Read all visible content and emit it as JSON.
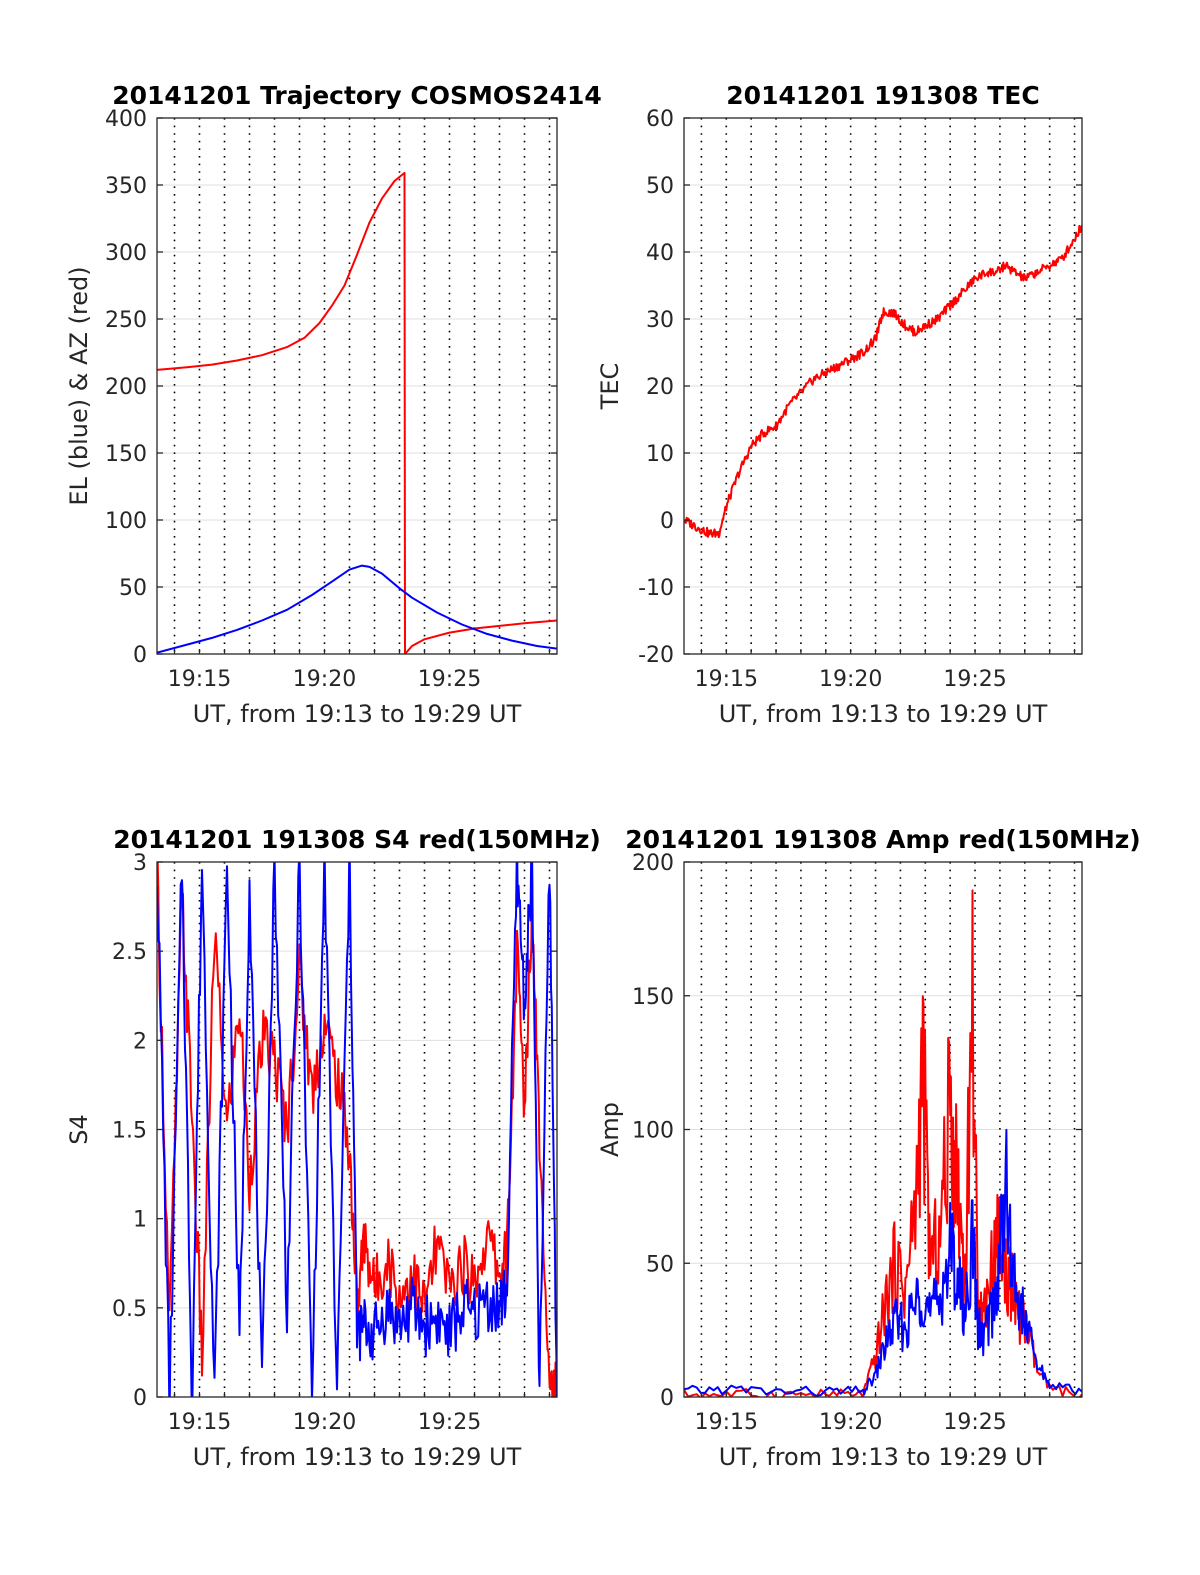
{
  "chart_data": [
    {
      "type": "line",
      "title": "20141201 Trajectory COSMOS2414",
      "xlabel": "UT, from 19:13 to 19:29 UT",
      "ylabel": "EL (blue) & AZ (red)",
      "xlim": [
        13.3,
        29.3
      ],
      "ylim": [
        0,
        400
      ],
      "x_ticks": [
        "19:15",
        "19:20",
        "19:25"
      ],
      "y_ticks": [
        "0",
        "50",
        "100",
        "150",
        "200",
        "250",
        "300",
        "350",
        "400"
      ],
      "grid": true,
      "colors": {
        "blue": "#0000ff",
        "red": "#ff0000"
      },
      "series": [
        {
          "color": "red",
          "x": [
            13.3,
            14.5,
            15.5,
            16.5,
            17.5,
            18.5,
            19.2,
            19.8,
            20.3,
            20.8,
            21.3,
            21.8,
            22.3,
            22.8,
            23.2,
            23.22,
            23.5,
            24,
            25,
            26,
            27,
            28,
            29.3
          ],
          "values": [
            212,
            214,
            216,
            219,
            223,
            229,
            236,
            247,
            260,
            275,
            298,
            322,
            340,
            353,
            359,
            0,
            6,
            11,
            16,
            19,
            21,
            23,
            25
          ]
        },
        {
          "color": "blue",
          "x": [
            13.3,
            14.5,
            15.5,
            16.5,
            17.5,
            18.5,
            19.5,
            20.3,
            21.0,
            21.5,
            21.8,
            22.3,
            23.0,
            23.5,
            24.5,
            25.5,
            26.5,
            27.5,
            28.5,
            29.3
          ],
          "values": [
            1,
            7,
            12,
            18,
            25,
            33,
            44,
            54,
            63,
            66,
            65,
            60,
            49,
            42,
            31,
            22,
            15,
            10,
            6,
            4
          ]
        }
      ]
    },
    {
      "type": "line",
      "title": "20141201 191308 TEC",
      "xlabel": "UT, from 19:13 to 19:29 UT",
      "ylabel": "TEC",
      "xlim": [
        13.3,
        29.3
      ],
      "ylim": [
        -20,
        60
      ],
      "x_ticks": [
        "19:15",
        "19:20",
        "19:25"
      ],
      "y_ticks": [
        "-20",
        "-10",
        "0",
        "10",
        "20",
        "30",
        "40",
        "50",
        "60"
      ],
      "grid": true,
      "colors": {
        "red": "#ff0000"
      },
      "series": [
        {
          "color": "red",
          "x": [
            13.3,
            13.8,
            14.3,
            14.7,
            15.0,
            15.5,
            16.0,
            16.5,
            17.0,
            17.5,
            18.0,
            18.5,
            19.0,
            19.5,
            20.0,
            20.5,
            21.0,
            21.3,
            21.7,
            22.2,
            22.6,
            23.0,
            23.5,
            24.0,
            24.5,
            25.0,
            25.5,
            25.9,
            26.2,
            26.6,
            27.0,
            27.5,
            28.0,
            28.5,
            29.0,
            29.3
          ],
          "values": [
            0,
            -1,
            -2,
            -2,
            2,
            7,
            11,
            13,
            14,
            17,
            19,
            21,
            22,
            23,
            24,
            25,
            27,
            31,
            31,
            29,
            28,
            29,
            30,
            32,
            34,
            36,
            37,
            37,
            38,
            37,
            36,
            37,
            38,
            39,
            42,
            44
          ]
        }
      ]
    },
    {
      "type": "line",
      "title": "20141201 191308 S4 red(150MHz)",
      "xlabel": "UT, from 19:13 to 19:29 UT",
      "ylabel": "S4",
      "xlim": [
        13.3,
        29.3
      ],
      "ylim": [
        0,
        3
      ],
      "x_ticks": [
        "19:15",
        "19:20",
        "19:25"
      ],
      "y_ticks": [
        "0",
        "0.5",
        "1",
        "1.5",
        "2",
        "2.5",
        "3"
      ],
      "grid": true,
      "colors": {
        "blue": "#0000ff",
        "red": "#ff0000"
      },
      "series": [
        {
          "color": "red",
          "x": [
            13.3,
            13.8,
            14.3,
            14.7,
            15.1,
            15.6,
            16.1,
            16.6,
            17.0,
            17.5,
            18.0,
            18.5,
            19.0,
            19.5,
            20.0,
            20.5,
            21.0,
            21.3,
            21.6,
            22.0,
            22.5,
            23.0,
            23.5,
            24.0,
            24.5,
            25.0,
            25.5,
            26.0,
            26.5,
            27.0,
            27.3,
            27.7,
            28.0,
            28.3,
            28.6,
            29.0,
            29.3
          ],
          "values": [
            3,
            0.4,
            2.8,
            1.6,
            0.2,
            2.6,
            1.5,
            2.2,
            1.2,
            2.0,
            1.9,
            1.5,
            2.4,
            1.7,
            2.1,
            1.8,
            1.4,
            0.5,
            0.9,
            0.6,
            0.8,
            0.55,
            0.7,
            0.5,
            0.85,
            0.6,
            0.75,
            0.65,
            0.9,
            0.7,
            0.8,
            2.5,
            1.6,
            2.8,
            1.5,
            0.1,
            0
          ]
        },
        {
          "color": "blue",
          "x": [
            13.3,
            13.8,
            14.3,
            14.7,
            15.1,
            15.6,
            16.1,
            16.6,
            17.0,
            17.5,
            18.0,
            18.5,
            19.0,
            19.5,
            20.0,
            20.5,
            21.0,
            21.3,
            21.6,
            22.0,
            22.5,
            23.0,
            23.5,
            24.0,
            24.5,
            25.0,
            25.5,
            26.0,
            26.5,
            27.0,
            27.3,
            27.7,
            28.0,
            28.3,
            28.6,
            29.0,
            29.3
          ],
          "values": [
            3,
            0,
            3,
            0,
            3,
            0,
            3,
            0.3,
            2.9,
            0,
            3,
            0.5,
            3,
            0,
            3,
            0,
            3,
            0.35,
            0.4,
            0.35,
            0.5,
            0.4,
            0.5,
            0.4,
            0.45,
            0.35,
            0.5,
            0.45,
            0.55,
            0.5,
            0.6,
            3,
            2.2,
            3,
            0,
            3,
            0
          ]
        }
      ]
    },
    {
      "type": "line",
      "title": "20141201 191308 Amp red(150MHz)",
      "xlabel": "UT, from 19:13 to 19:29 UT",
      "ylabel": "Amp",
      "xlim": [
        13.3,
        29.3
      ],
      "ylim": [
        0,
        200
      ],
      "x_ticks": [
        "19:15",
        "19:20",
        "19:25"
      ],
      "y_ticks": [
        "0",
        "50",
        "100",
        "150",
        "200"
      ],
      "grid": true,
      "colors": {
        "blue": "#0000ff",
        "red": "#ff0000"
      },
      "series": [
        {
          "color": "red",
          "x": [
            13.3,
            15.0,
            17.0,
            19.0,
            20.5,
            21.0,
            21.4,
            21.8,
            22.2,
            22.6,
            22.9,
            23.2,
            23.6,
            24.0,
            24.3,
            24.6,
            24.9,
            25.1,
            25.3,
            25.6,
            25.9,
            26.2,
            26.5,
            26.8,
            27.1,
            27.5,
            28.0,
            29.3
          ],
          "values": [
            1,
            1,
            1,
            1,
            1,
            15,
            35,
            50,
            40,
            70,
            124,
            50,
            60,
            110,
            80,
            45,
            152,
            40,
            30,
            45,
            60,
            50,
            40,
            30,
            25,
            10,
            3,
            1
          ]
        },
        {
          "color": "blue",
          "x": [
            13.3,
            15.0,
            17.0,
            19.0,
            20.5,
            21.0,
            21.4,
            21.8,
            22.2,
            22.6,
            22.9,
            23.2,
            23.6,
            24.0,
            24.3,
            24.6,
            24.9,
            25.1,
            25.3,
            25.6,
            25.9,
            26.2,
            26.5,
            26.8,
            27.1,
            27.5,
            28.0,
            29.3
          ],
          "values": [
            2,
            3,
            2,
            2,
            2,
            8,
            20,
            28,
            25,
            35,
            40,
            30,
            38,
            55,
            45,
            30,
            60,
            28,
            22,
            30,
            40,
            84,
            45,
            35,
            25,
            12,
            5,
            2
          ]
        }
      ]
    }
  ]
}
